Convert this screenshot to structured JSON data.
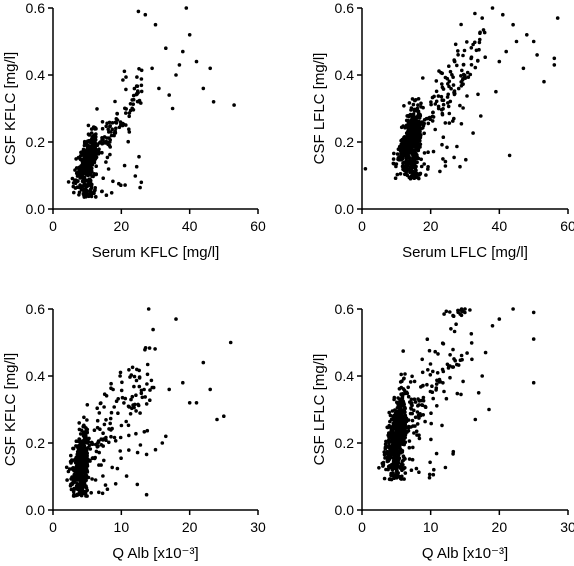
{
  "chart_data": [
    {
      "type": "scatter",
      "xlabel": "Serum KFLC [mg/l]",
      "ylabel": "CSF KFLC [mg/l]",
      "xlim": [
        0,
        60
      ],
      "ylim": [
        0,
        0.6
      ],
      "xticks": [
        "0",
        "20",
        "40",
        "60"
      ],
      "yticks": [
        "0.0",
        "0.2",
        "0.4",
        "0.6"
      ],
      "gen": {
        "n": 650,
        "xmin": 3.5,
        "xmode": 10,
        "xmax": 26,
        "ymin": 0.035,
        "slope": 0.0125,
        "sd": 0.045,
        "ymax": 0.6,
        "seed": 11
      },
      "extra": [
        [
          39,
          0.6
        ],
        [
          40,
          0.52
        ],
        [
          46,
          0.42
        ],
        [
          47,
          0.32
        ],
        [
          53,
          0.31
        ],
        [
          36,
          0.4
        ],
        [
          42,
          0.44
        ],
        [
          33,
          0.48
        ],
        [
          30,
          0.55
        ],
        [
          27,
          0.58
        ],
        [
          35,
          0.3
        ],
        [
          44,
          0.36
        ],
        [
          31,
          0.36
        ],
        [
          38,
          0.47
        ],
        [
          29,
          0.42
        ],
        [
          25,
          0.59
        ],
        [
          34,
          0.34
        ],
        [
          37,
          0.43
        ]
      ]
    },
    {
      "type": "scatter",
      "xlabel": "Serum LFLC [mg/l]",
      "ylabel": "CSF LFLC [mg/l]",
      "xlim": [
        0,
        60
      ],
      "ylim": [
        0,
        0.6
      ],
      "xticks": [
        "0",
        "20",
        "40",
        "60"
      ],
      "yticks": [
        "0.0",
        "0.2",
        "0.4",
        "0.6"
      ],
      "gen": {
        "n": 750,
        "xmin": 7,
        "xmode": 14,
        "xmax": 36,
        "ymin": 0.09,
        "slope": 0.0125,
        "sd": 0.055,
        "ymax": 0.6,
        "seed": 23
      },
      "extra": [
        [
          57,
          0.57
        ],
        [
          56,
          0.45
        ],
        [
          51,
          0.46
        ],
        [
          56,
          0.43
        ],
        [
          45,
          0.5
        ],
        [
          43,
          0.16
        ],
        [
          1,
          0.12
        ],
        [
          41,
          0.58
        ],
        [
          38,
          0.6
        ],
        [
          48,
          0.52
        ],
        [
          53,
          0.38
        ],
        [
          44,
          0.55
        ],
        [
          47,
          0.42
        ],
        [
          39,
          0.35
        ],
        [
          42,
          0.47
        ],
        [
          35,
          0.57
        ],
        [
          50,
          0.5
        ],
        [
          40,
          0.44
        ]
      ]
    },
    {
      "type": "scatter",
      "xlabel": "Q Alb [x10⁻³]",
      "ylabel": "CSF KFLC [mg/l]",
      "xlim": [
        0,
        30
      ],
      "ylim": [
        0,
        0.6
      ],
      "xticks": [
        "0",
        "10",
        "20",
        "30"
      ],
      "yticks": [
        "0.0",
        "0.2",
        "0.4",
        "0.6"
      ],
      "gen": {
        "n": 650,
        "xmin": 1.5,
        "xmode": 4,
        "xmax": 15,
        "ymin": 0.04,
        "slope": 0.024,
        "sd": 0.07,
        "ymax": 0.6,
        "seed": 37
      },
      "extra": [
        [
          26,
          0.5
        ],
        [
          24,
          0.27
        ],
        [
          25,
          0.28
        ],
        [
          23,
          0.36
        ],
        [
          22,
          0.44
        ],
        [
          20,
          0.32
        ],
        [
          21,
          0.32
        ],
        [
          18,
          0.57
        ],
        [
          17,
          0.36
        ],
        [
          16,
          0.2
        ],
        [
          19,
          0.38
        ],
        [
          15,
          0.18
        ],
        [
          16.5,
          0.22
        ],
        [
          14,
          0.6
        ]
      ]
    },
    {
      "type": "scatter",
      "xlabel": "Q Alb [x10⁻³]",
      "ylabel": "CSF LFLC [mg/l]",
      "xlim": [
        0,
        30
      ],
      "ylim": [
        0,
        0.6
      ],
      "xticks": [
        "0",
        "10",
        "20",
        "30"
      ],
      "yticks": [
        "0.0",
        "0.2",
        "0.4",
        "0.6"
      ],
      "gen": {
        "n": 750,
        "xmin": 1.8,
        "xmode": 5,
        "xmax": 16,
        "ymin": 0.09,
        "slope": 0.028,
        "sd": 0.08,
        "ymax": 0.6,
        "seed": 53
      },
      "extra": [
        [
          25,
          0.59
        ],
        [
          25,
          0.51
        ],
        [
          25,
          0.38
        ],
        [
          22,
          0.6
        ],
        [
          20,
          0.57
        ],
        [
          18,
          0.47
        ],
        [
          19,
          0.55
        ],
        [
          17,
          0.35
        ],
        [
          16,
          0.45
        ],
        [
          15,
          0.6
        ],
        [
          14.5,
          0.6
        ],
        [
          17.5,
          0.4
        ],
        [
          18.5,
          0.3
        ],
        [
          16.5,
          0.27
        ]
      ]
    }
  ]
}
